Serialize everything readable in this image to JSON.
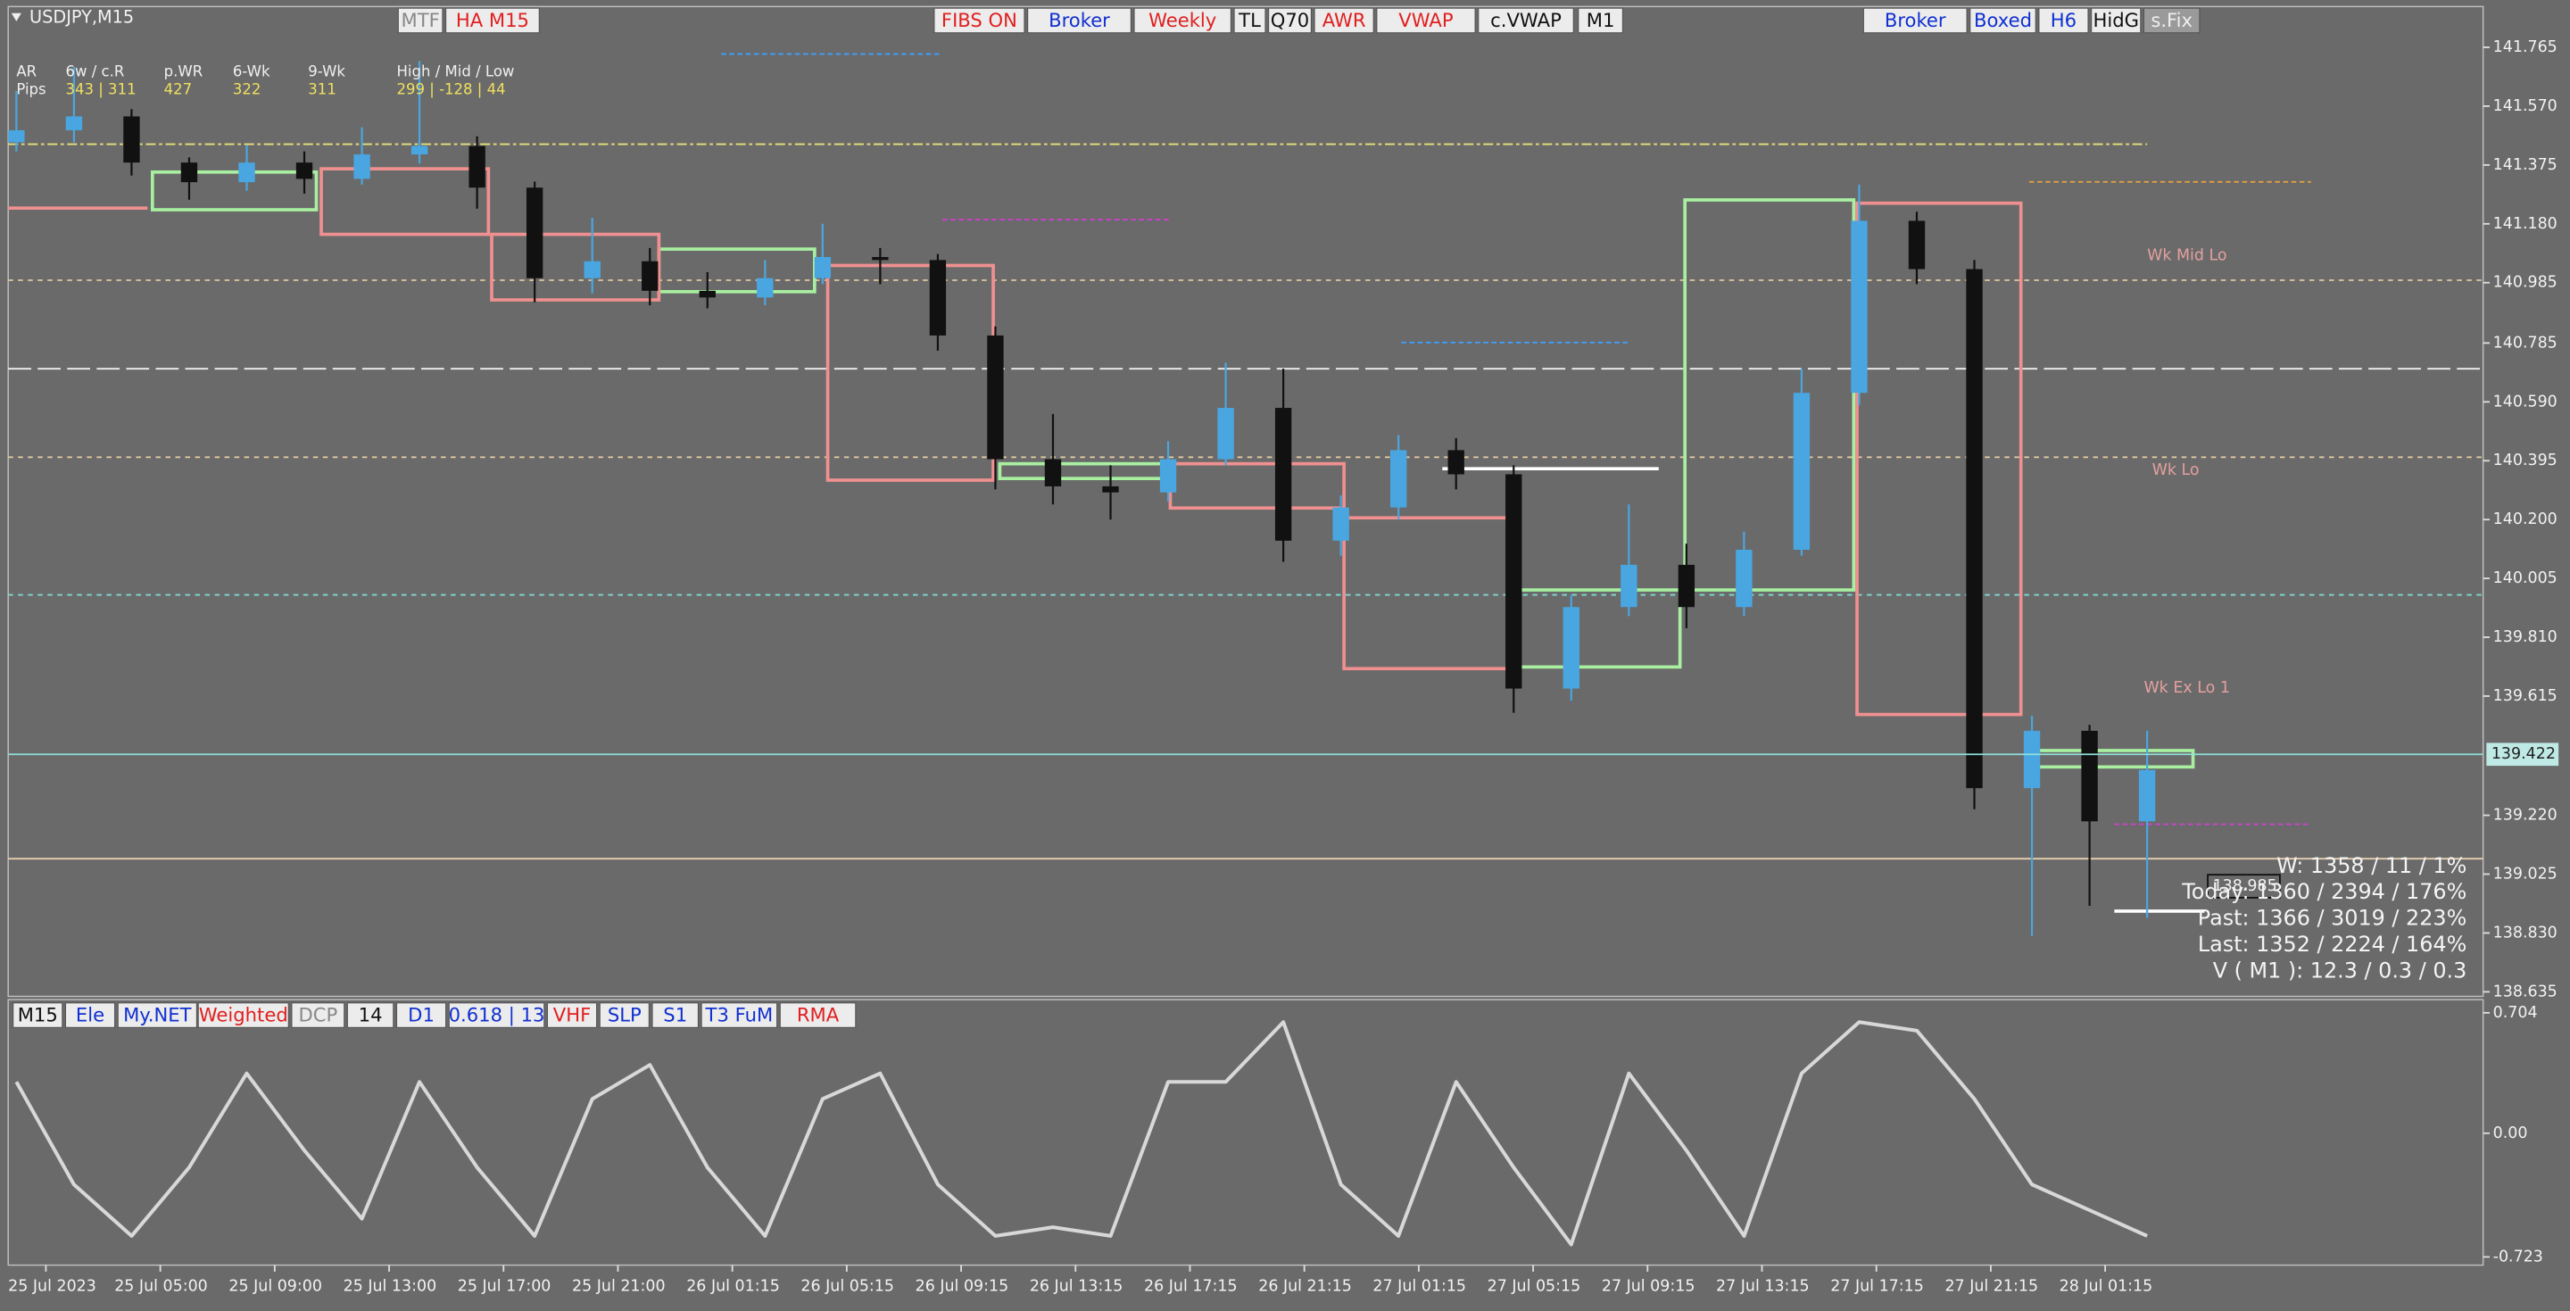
{
  "symbol": "USDJPY,M15",
  "toolbar_top": [
    "MTF",
    "HA M15",
    "FIBS ON",
    "Broker",
    "Weekly",
    "TL",
    "Q70",
    "AWR",
    "VWAP",
    "c.VWAP",
    "M1",
    "Broker",
    "Boxed",
    "H6",
    "HidG",
    "s.Fix"
  ],
  "toolbar_bottom": [
    "M15",
    "Ele",
    "My.NET",
    "Weighted",
    "DCP",
    "14",
    "D1",
    "0.618 | 13",
    "VHF",
    "SLP",
    "S1",
    "T3 FuM",
    "RMA"
  ],
  "info": {
    "row1": [
      "AR",
      "6w / c.R",
      "p.WR",
      "6-Wk",
      "9-Wk",
      "High / Mid / Low"
    ],
    "row2": [
      "Pips",
      "343 | 311",
      "427",
      "322",
      "311",
      "299 | -128 | 44"
    ]
  },
  "level_labels": [
    "Wk Mid Lo",
    "Wk Lo",
    "Wk Ex Lo 1"
  ],
  "stats": [
    "W: 1358 / 11 / 1%",
    "Today: 1360 / 2394 / 176%",
    "Past: 1366 / 3019 / 223%",
    "Last: 1352 / 2224 / 164%",
    "V ( M1 ): 12.3 / 0.3 / 0.3"
  ],
  "chart_data": [
    {
      "type": "candlestick",
      "up_color": "#4aa6e0",
      "down_color": "#111111",
      "candles": [
        [
          141.45,
          141.62,
          141.42,
          141.49
        ],
        [
          141.49,
          141.7,
          141.45,
          141.536
        ],
        [
          141.536,
          141.56,
          141.34,
          141.383
        ],
        [
          141.383,
          141.4,
          141.26,
          141.318
        ],
        [
          141.318,
          141.44,
          141.29,
          141.383
        ],
        [
          141.383,
          141.42,
          141.28,
          141.329
        ],
        [
          141.329,
          141.5,
          141.31,
          141.41
        ],
        [
          141.41,
          141.72,
          141.38,
          141.438
        ],
        [
          141.438,
          141.47,
          141.23,
          141.3
        ],
        [
          141.3,
          141.32,
          140.92,
          141.0
        ],
        [
          141.0,
          141.2,
          140.95,
          141.056
        ],
        [
          141.056,
          141.1,
          140.91,
          140.958
        ],
        [
          140.958,
          141.02,
          140.9,
          140.936
        ],
        [
          140.936,
          141.06,
          140.91,
          141.0
        ],
        [
          141.0,
          141.18,
          140.98,
          141.07
        ],
        [
          141.07,
          141.1,
          140.98,
          141.06
        ],
        [
          141.06,
          141.08,
          140.76,
          140.81
        ],
        [
          140.81,
          140.84,
          140.3,
          140.4
        ],
        [
          140.4,
          140.55,
          140.25,
          140.31
        ],
        [
          140.31,
          140.38,
          140.2,
          140.29
        ],
        [
          140.29,
          140.46,
          140.26,
          140.4
        ],
        [
          140.4,
          140.72,
          140.38,
          140.57
        ],
        [
          140.57,
          140.7,
          140.06,
          140.13
        ],
        [
          140.13,
          140.28,
          140.08,
          140.24
        ],
        [
          140.24,
          140.48,
          140.2,
          140.43
        ],
        [
          140.43,
          140.47,
          140.3,
          140.35
        ],
        [
          140.35,
          140.38,
          139.56,
          139.64
        ],
        [
          139.64,
          139.95,
          139.6,
          139.91
        ],
        [
          139.91,
          140.25,
          139.88,
          140.05
        ],
        [
          140.05,
          140.12,
          139.84,
          139.91
        ],
        [
          139.91,
          140.16,
          139.88,
          140.1
        ],
        [
          140.1,
          140.7,
          140.08,
          140.62
        ],
        [
          140.62,
          141.31,
          140.58,
          141.19
        ],
        [
          141.19,
          141.22,
          140.98,
          141.03
        ],
        [
          141.03,
          141.06,
          139.24,
          139.31
        ],
        [
          139.31,
          139.55,
          138.82,
          139.5
        ],
        [
          139.5,
          139.52,
          138.92,
          139.2
        ],
        [
          139.2,
          139.5,
          138.88,
          139.37
        ]
      ],
      "ylim": [
        138.62,
        141.9
      ],
      "yticks": [
        141.765,
        {
          "value": 141.57,
          "label": "141.570"
        },
        141.375,
        {
          "value": 141.18,
          "label": "141.180"
        },
        140.985,
        140.785,
        {
          "value": 140.59,
          "label": "140.590"
        },
        140.395,
        {
          "value": 140.2,
          "label": "140.200"
        },
        140.005,
        {
          "value": 139.81,
          "label": "139.810"
        },
        139.615,
        {
          "value": 139.22,
          "label": "139.220"
        },
        139.025,
        {
          "value": 138.83,
          "label": "138.830"
        },
        138.635
      ],
      "current_price": 139.422,
      "marked_price": 138.985,
      "time_labels": [
        "25 Jul 2023",
        "25 Jul 05:00",
        "25 Jul 09:00",
        "25 Jul 13:00",
        "25 Jul 17:00",
        "25 Jul 21:00",
        "26 Jul 01:15",
        "26 Jul 05:15",
        "26 Jul 09:15",
        "26 Jul 13:15",
        "26 Jul 17:15",
        "26 Jul 21:15",
        "27 Jul 01:15",
        "27 Jul 05:15",
        "27 Jul 09:15",
        "27 Jul 13:15",
        "27 Jul 17:15",
        "27 Jul 21:15",
        "28 Jul 01:15"
      ]
    },
    {
      "type": "line",
      "color": "#d8d8d8",
      "values": [
        0.3,
        -0.3,
        -0.6,
        -0.2,
        0.35,
        -0.1,
        -0.5,
        0.3,
        -0.2,
        -0.6,
        0.2,
        0.4,
        -0.2,
        -0.6,
        0.2,
        0.35,
        -0.3,
        -0.6,
        -0.55,
        -0.6,
        0.3,
        0.3,
        0.65,
        -0.3,
        -0.6,
        0.3,
        -0.2,
        -0.65,
        0.35,
        -0.1,
        -0.6,
        0.35,
        0.65,
        0.6,
        0.2,
        -0.3,
        -0.45,
        -0.6
      ],
      "ylim": [
        -0.771,
        0.781
      ],
      "yticks": [
        0.704,
        {
          "value": 0,
          "label": "0.00"
        },
        -0.723
      ]
    }
  ]
}
